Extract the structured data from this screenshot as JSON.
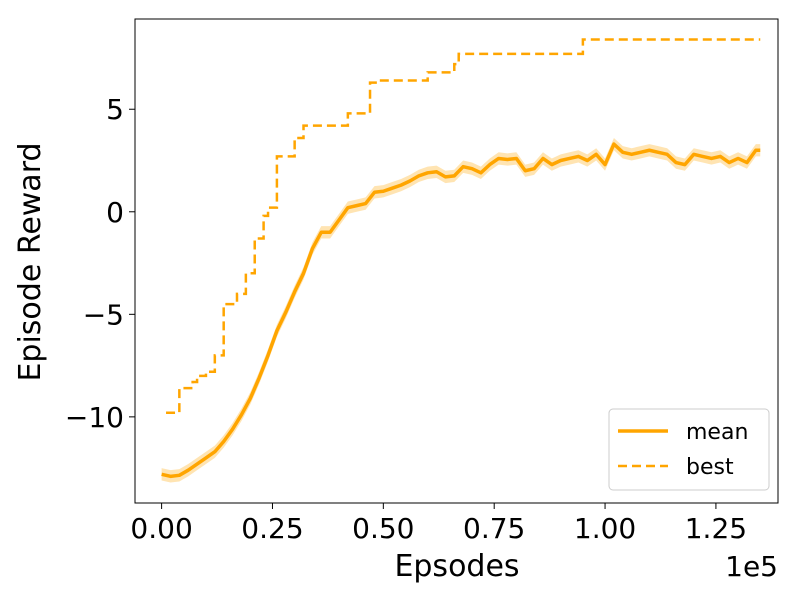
{
  "chart_data": {
    "type": "line",
    "title": "",
    "xlabel": "Epsodes",
    "ylabel": "Episode Reward",
    "x_offset_label": "1e5",
    "xlim": [
      -0.06,
      1.39
    ],
    "ylim": [
      -14.2,
      9.4
    ],
    "x_ticks": [
      0.0,
      0.25,
      0.5,
      0.75,
      1.0,
      1.25
    ],
    "x_tick_labels": [
      "0.00",
      "0.25",
      "0.50",
      "0.75",
      "1.00",
      "1.25"
    ],
    "y_ticks": [
      -10,
      -5,
      0,
      5
    ],
    "y_tick_labels": [
      "−10",
      "−5",
      "0",
      "5"
    ],
    "grid": false,
    "legend_position": "lower-right",
    "colors": {
      "line": "#FFA500",
      "band": "#FFA500"
    },
    "series": [
      {
        "name": "mean",
        "style": "solid",
        "band_halfwidth": 0.3,
        "points": [
          [
            0.0,
            -12.8
          ],
          [
            0.02,
            -12.9
          ],
          [
            0.04,
            -12.85
          ],
          [
            0.06,
            -12.6
          ],
          [
            0.08,
            -12.3
          ],
          [
            0.1,
            -12.0
          ],
          [
            0.12,
            -11.7
          ],
          [
            0.14,
            -11.2
          ],
          [
            0.16,
            -10.6
          ],
          [
            0.18,
            -9.9
          ],
          [
            0.2,
            -9.1
          ],
          [
            0.22,
            -8.1
          ],
          [
            0.24,
            -7.0
          ],
          [
            0.26,
            -5.8
          ],
          [
            0.28,
            -4.9
          ],
          [
            0.3,
            -3.9
          ],
          [
            0.32,
            -3.0
          ],
          [
            0.34,
            -1.8
          ],
          [
            0.36,
            -1.0
          ],
          [
            0.38,
            -1.0
          ],
          [
            0.4,
            -0.4
          ],
          [
            0.42,
            0.2
          ],
          [
            0.44,
            0.3
          ],
          [
            0.46,
            0.4
          ],
          [
            0.48,
            0.95
          ],
          [
            0.5,
            1.0
          ],
          [
            0.52,
            1.15
          ],
          [
            0.54,
            1.3
          ],
          [
            0.56,
            1.5
          ],
          [
            0.58,
            1.75
          ],
          [
            0.6,
            1.9
          ],
          [
            0.62,
            1.95
          ],
          [
            0.64,
            1.7
          ],
          [
            0.66,
            1.75
          ],
          [
            0.68,
            2.2
          ],
          [
            0.7,
            2.1
          ],
          [
            0.72,
            1.9
          ],
          [
            0.74,
            2.3
          ],
          [
            0.76,
            2.6
          ],
          [
            0.78,
            2.55
          ],
          [
            0.8,
            2.6
          ],
          [
            0.82,
            2.0
          ],
          [
            0.84,
            2.1
          ],
          [
            0.86,
            2.6
          ],
          [
            0.88,
            2.3
          ],
          [
            0.9,
            2.5
          ],
          [
            0.92,
            2.6
          ],
          [
            0.94,
            2.7
          ],
          [
            0.96,
            2.5
          ],
          [
            0.98,
            2.8
          ],
          [
            1.0,
            2.3
          ],
          [
            1.02,
            3.3
          ],
          [
            1.04,
            2.9
          ],
          [
            1.06,
            2.8
          ],
          [
            1.08,
            2.9
          ],
          [
            1.1,
            3.0
          ],
          [
            1.12,
            2.9
          ],
          [
            1.14,
            2.8
          ],
          [
            1.16,
            2.4
          ],
          [
            1.18,
            2.3
          ],
          [
            1.2,
            2.8
          ],
          [
            1.22,
            2.7
          ],
          [
            1.24,
            2.6
          ],
          [
            1.26,
            2.7
          ],
          [
            1.28,
            2.4
          ],
          [
            1.3,
            2.6
          ],
          [
            1.32,
            2.4
          ],
          [
            1.34,
            3.0
          ],
          [
            1.35,
            3.0
          ]
        ]
      },
      {
        "name": "best",
        "style": "dashed",
        "points": [
          [
            0.01,
            -9.8
          ],
          [
            0.04,
            -9.8
          ],
          [
            0.04,
            -8.6
          ],
          [
            0.07,
            -8.6
          ],
          [
            0.07,
            -8.3
          ],
          [
            0.08,
            -8.3
          ],
          [
            0.08,
            -8.0
          ],
          [
            0.1,
            -8.0
          ],
          [
            0.1,
            -7.8
          ],
          [
            0.12,
            -7.8
          ],
          [
            0.12,
            -7.0
          ],
          [
            0.14,
            -7.0
          ],
          [
            0.14,
            -4.5
          ],
          [
            0.17,
            -4.5
          ],
          [
            0.17,
            -4.0
          ],
          [
            0.19,
            -4.0
          ],
          [
            0.19,
            -3.0
          ],
          [
            0.21,
            -3.0
          ],
          [
            0.21,
            -1.3
          ],
          [
            0.23,
            -1.3
          ],
          [
            0.23,
            -0.2
          ],
          [
            0.24,
            -0.2
          ],
          [
            0.24,
            0.2
          ],
          [
            0.26,
            0.2
          ],
          [
            0.26,
            2.7
          ],
          [
            0.3,
            2.7
          ],
          [
            0.3,
            3.6
          ],
          [
            0.32,
            3.6
          ],
          [
            0.32,
            4.2
          ],
          [
            0.42,
            4.2
          ],
          [
            0.42,
            4.8
          ],
          [
            0.47,
            4.8
          ],
          [
            0.47,
            6.3
          ],
          [
            0.49,
            6.3
          ],
          [
            0.49,
            6.4
          ],
          [
            0.6,
            6.4
          ],
          [
            0.6,
            6.8
          ],
          [
            0.66,
            6.8
          ],
          [
            0.66,
            7.2
          ],
          [
            0.67,
            7.2
          ],
          [
            0.67,
            7.7
          ],
          [
            0.95,
            7.7
          ],
          [
            0.95,
            8.4
          ],
          [
            1.35,
            8.4
          ]
        ]
      }
    ]
  }
}
